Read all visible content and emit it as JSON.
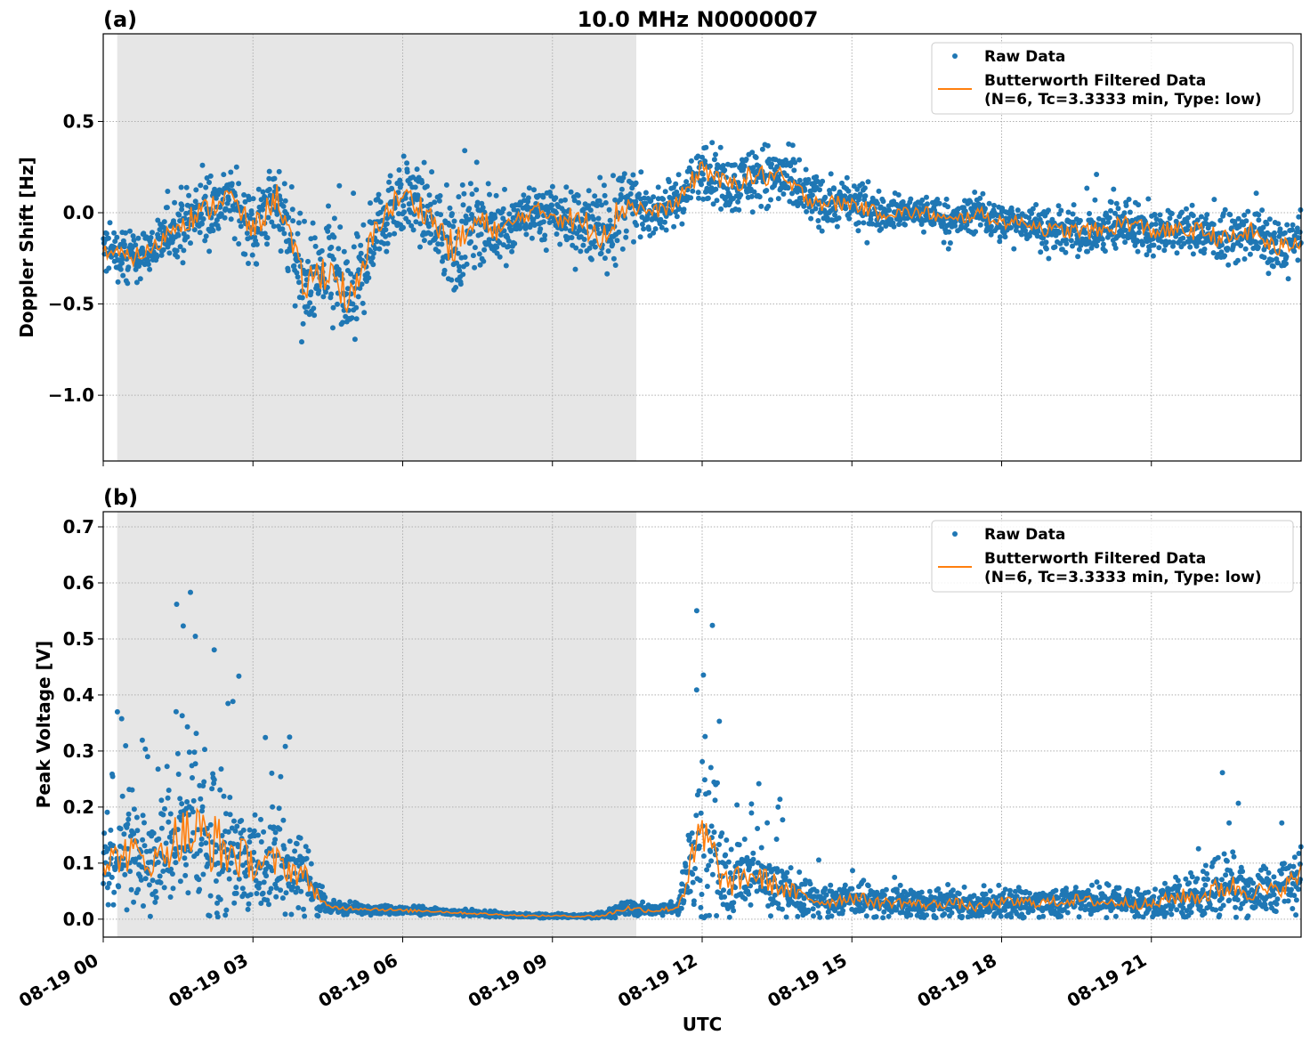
{
  "chart_data": [
    {
      "type": "scatter",
      "panel_label": "(a)",
      "title": "10.0 MHz N0000007",
      "ylabel": "Doppler Shift [Hz]",
      "xlabel": "",
      "xlim": [
        "08-19 00:00",
        "08-20 00:00"
      ],
      "ylim": [
        -1.36,
        0.98
      ],
      "yticks": [
        0.5,
        0.0,
        -0.5,
        -1.0
      ],
      "ytick_labels": [
        "0.5",
        "0.0",
        "−0.5",
        "−1.0"
      ],
      "grid": true,
      "legend_position": "top-right",
      "shaded_interval_utc_hours": [
        0.28,
        10.68
      ],
      "hours": [
        0,
        0.5,
        1,
        1.5,
        2,
        2.5,
        3,
        3.5,
        4,
        4.5,
        5,
        5.5,
        6,
        6.5,
        7,
        7.5,
        8,
        8.5,
        9,
        9.5,
        10,
        10.5,
        11,
        11.5,
        12,
        12.5,
        13,
        13.5,
        14,
        14.5,
        15,
        15.5,
        16,
        16.5,
        17,
        17.5,
        18,
        18.5,
        19,
        19.5,
        20,
        20.5,
        21,
        21.5,
        22,
        22.5,
        23,
        23.5,
        24
      ],
      "series": [
        {
          "name": "Butterworth Filtered Data\n(N=6, Tc=3.3333 min, Type: low)",
          "kind": "line",
          "color": "#ff7f0e",
          "values": [
            -0.2,
            -0.25,
            -0.2,
            -0.05,
            0.0,
            0.1,
            -0.1,
            0.1,
            -0.4,
            -0.3,
            -0.5,
            -0.05,
            0.1,
            0.0,
            -0.2,
            -0.05,
            -0.1,
            0.0,
            0.0,
            -0.05,
            -0.1,
            0.05,
            0.0,
            0.05,
            0.25,
            0.15,
            0.2,
            0.2,
            0.1,
            0.05,
            0.05,
            0.0,
            0.0,
            0.0,
            -0.05,
            0.0,
            -0.05,
            -0.05,
            -0.1,
            -0.1,
            -0.1,
            -0.05,
            -0.1,
            -0.1,
            -0.1,
            -0.15,
            -0.1,
            -0.2,
            -0.15
          ]
        },
        {
          "name": "Raw Data",
          "kind": "scatter",
          "color": "#1f77b4",
          "spread": [
            0.2,
            0.2,
            0.2,
            0.25,
            0.3,
            0.25,
            0.3,
            0.3,
            0.4,
            0.45,
            0.45,
            0.3,
            0.3,
            0.3,
            0.4,
            0.3,
            0.25,
            0.2,
            0.25,
            0.3,
            0.4,
            0.3,
            0.15,
            0.2,
            0.25,
            0.2,
            0.25,
            0.25,
            0.22,
            0.2,
            0.18,
            0.15,
            0.15,
            0.15,
            0.15,
            0.15,
            0.15,
            0.15,
            0.18,
            0.18,
            0.2,
            0.2,
            0.2,
            0.2,
            0.2,
            0.22,
            0.2,
            0.22,
            0.2
          ]
        }
      ]
    },
    {
      "type": "scatter",
      "panel_label": "(b)",
      "title": "",
      "ylabel": "Peak Voltage [V]",
      "xlabel": "UTC",
      "xlim": [
        "08-19 00:00",
        "08-20 00:00"
      ],
      "ylim": [
        -0.032,
        0.727
      ],
      "yticks": [
        0.0,
        0.1,
        0.2,
        0.3,
        0.4,
        0.5,
        0.6,
        0.7
      ],
      "ytick_labels": [
        "0.0",
        "0.1",
        "0.2",
        "0.3",
        "0.4",
        "0.5",
        "0.6",
        "0.7"
      ],
      "xticks_hours": [
        0,
        3,
        6,
        9,
        12,
        15,
        18,
        21
      ],
      "xtick_labels": [
        "08-19 00",
        "08-19 03",
        "08-19 06",
        "08-19 09",
        "08-19 12",
        "08-19 15",
        "08-19 18",
        "08-19 21"
      ],
      "grid": true,
      "legend_position": "top-right",
      "shaded_interval_utc_hours": [
        0.28,
        10.68
      ],
      "hours": [
        0,
        0.5,
        1,
        1.5,
        2,
        2.5,
        3,
        3.5,
        4,
        4.5,
        5,
        5.5,
        6,
        6.5,
        7,
        7.5,
        8,
        8.5,
        9,
        9.5,
        10,
        10.5,
        11,
        11.5,
        12,
        12.5,
        13,
        13.5,
        14,
        14.5,
        15,
        15.5,
        16,
        16.5,
        17,
        17.5,
        18,
        18.5,
        19,
        19.5,
        20,
        20.5,
        21,
        21.5,
        22,
        22.5,
        23,
        23.5,
        24
      ],
      "series": [
        {
          "name": "Butterworth Filtered Data\n(N=6, Tc=3.3333 min, Type: low)",
          "kind": "line",
          "color": "#ff7f0e",
          "values": [
            0.1,
            0.12,
            0.1,
            0.15,
            0.15,
            0.12,
            0.1,
            0.1,
            0.08,
            0.02,
            0.02,
            0.018,
            0.015,
            0.015,
            0.012,
            0.01,
            0.008,
            0.006,
            0.006,
            0.005,
            0.006,
            0.02,
            0.015,
            0.02,
            0.15,
            0.06,
            0.08,
            0.06,
            0.04,
            0.03,
            0.04,
            0.03,
            0.03,
            0.025,
            0.03,
            0.02,
            0.03,
            0.03,
            0.03,
            0.035,
            0.03,
            0.03,
            0.025,
            0.04,
            0.04,
            0.06,
            0.05,
            0.05,
            0.08
          ]
        },
        {
          "name": "Raw Data",
          "kind": "scatter",
          "color": "#1f77b4",
          "spread": [
            0.1,
            0.15,
            0.1,
            0.2,
            0.25,
            0.2,
            0.12,
            0.12,
            0.1,
            0.02,
            0.015,
            0.012,
            0.012,
            0.01,
            0.008,
            0.008,
            0.006,
            0.006,
            0.006,
            0.006,
            0.01,
            0.02,
            0.015,
            0.02,
            0.25,
            0.1,
            0.1,
            0.08,
            0.06,
            0.04,
            0.05,
            0.04,
            0.04,
            0.035,
            0.04,
            0.03,
            0.04,
            0.04,
            0.04,
            0.04,
            0.04,
            0.04,
            0.04,
            0.06,
            0.06,
            0.1,
            0.07,
            0.06,
            0.08
          ]
        }
      ]
    }
  ],
  "legend": {
    "raw_label": "Raw Data",
    "filtered_line1": "Butterworth Filtered Data",
    "filtered_line2": "(N=6, Tc=3.3333 min, Type: low)"
  }
}
